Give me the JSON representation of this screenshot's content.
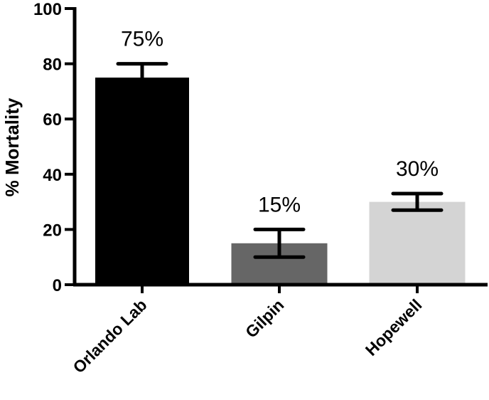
{
  "chart_data": {
    "type": "bar",
    "title": "",
    "xlabel": "",
    "ylabel": "%  Mortality",
    "ylim": [
      0,
      100
    ],
    "yticks": [
      0,
      20,
      40,
      60,
      80,
      100
    ],
    "categories": [
      "Orlando Lab",
      "Gilpin",
      "Hopewell"
    ],
    "values": [
      75,
      15,
      30
    ],
    "error_low": [
      70,
      10,
      27
    ],
    "error_high": [
      80,
      20,
      33
    ],
    "data_labels": [
      "75%",
      "15%",
      "30%"
    ],
    "colors": [
      "#000000",
      "#666666",
      "#d4d4d4"
    ],
    "grid": false,
    "legend": "none"
  }
}
